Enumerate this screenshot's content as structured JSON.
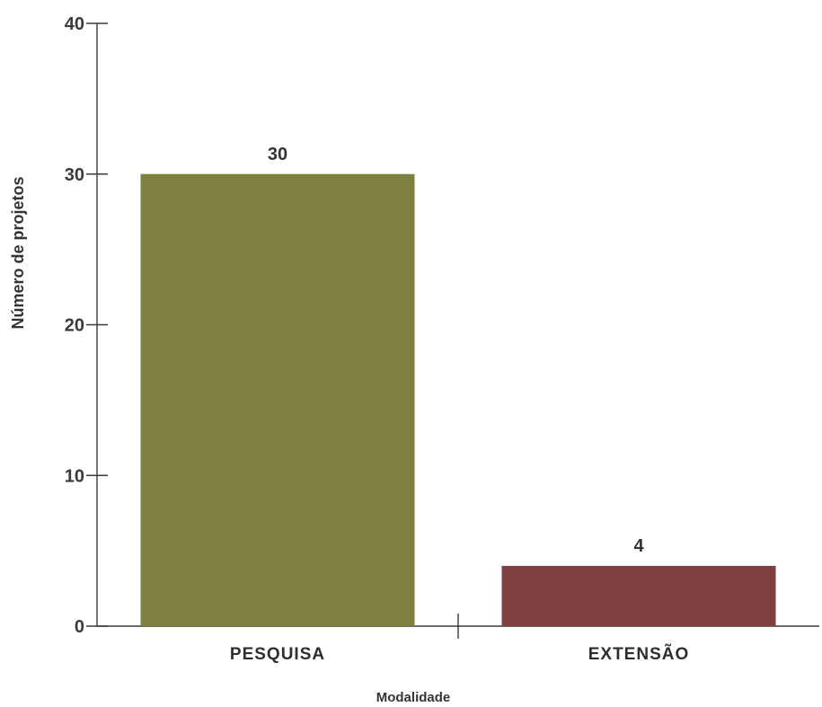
{
  "chart_data": {
    "type": "bar",
    "categories": [
      "PESQUISA",
      "EXTENSÃO"
    ],
    "values": [
      30,
      4
    ],
    "value_labels": [
      "30",
      "4"
    ],
    "bar_colors": [
      "#7f7f3f",
      "#7f3f3f"
    ],
    "xlabel": "Modalidade",
    "ylabel": "Número de projetos",
    "ylim": [
      0,
      40
    ],
    "yticks": [
      0,
      10,
      20,
      30,
      40
    ],
    "ytick_labels": [
      "0",
      "10",
      "20",
      "30",
      "40"
    ],
    "grid": false,
    "legend": "none"
  }
}
